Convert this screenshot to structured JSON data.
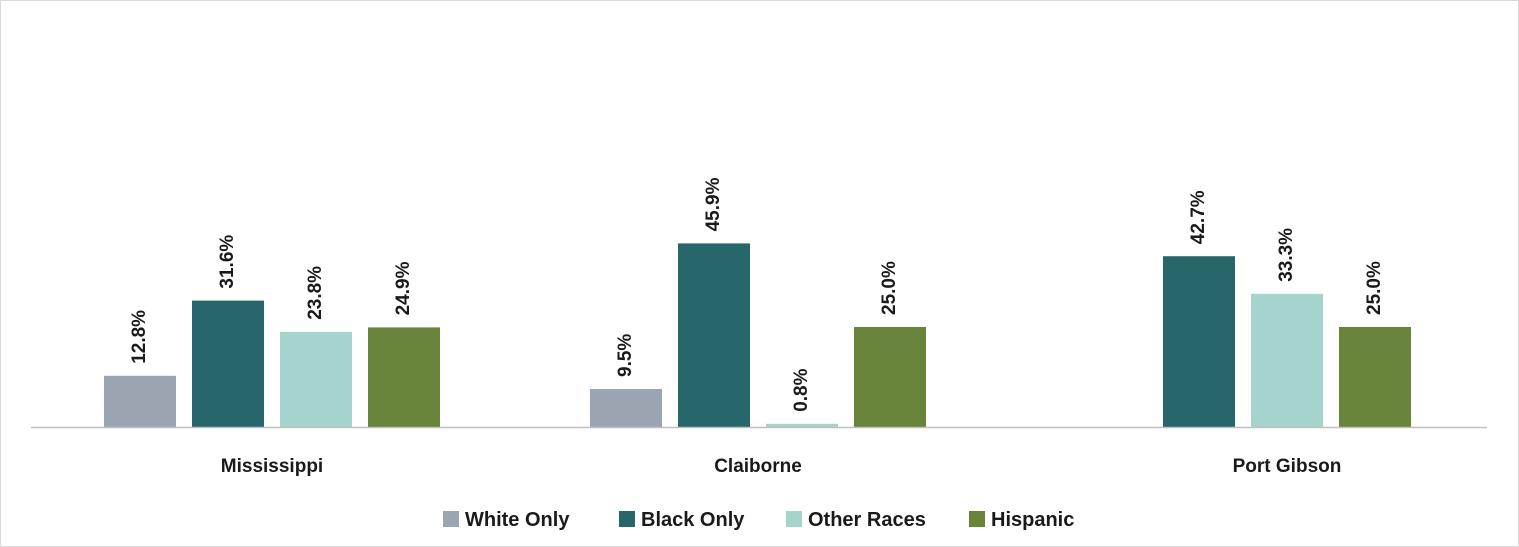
{
  "chart_data": {
    "type": "bar",
    "title": "",
    "xlabel": "",
    "ylabel": "",
    "categories": [
      "Mississippi",
      "Claiborne",
      "Port Gibson"
    ],
    "ylim": [
      0,
      70
    ],
    "grid": false,
    "legend_position": "bottom",
    "series": [
      {
        "name": "White Only",
        "color": "#9aa5b1",
        "values": [
          12.8,
          9.5,
          null
        ],
        "labels": [
          "12.8%",
          "9.5%",
          ""
        ]
      },
      {
        "name": "Black Only",
        "color": "#27666b",
        "values": [
          31.6,
          45.9,
          42.7
        ],
        "labels": [
          "31.6%",
          "45.9%",
          "42.7%"
        ]
      },
      {
        "name": "Other Races",
        "color": "#a4d4cc",
        "values": [
          23.8,
          0.8,
          33.3
        ],
        "labels": [
          "23.8%",
          "0.8%",
          "33.3%"
        ]
      },
      {
        "name": "Hispanic",
        "color": "#68843b",
        "values": [
          24.9,
          25.0,
          25.0
        ],
        "labels": [
          "24.9%",
          "25.0%",
          "25.0%"
        ]
      }
    ],
    "axis_color": "#bfbfbf"
  }
}
